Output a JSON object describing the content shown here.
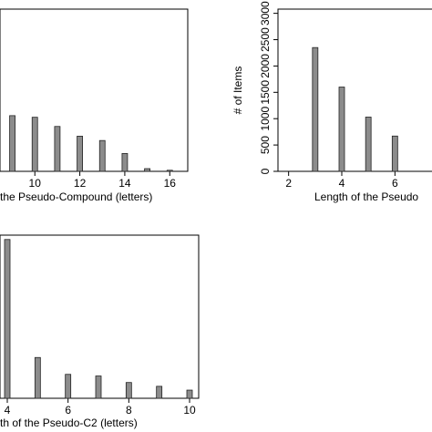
{
  "chart_data": [
    {
      "type": "bar",
      "x_label": "the Pseudo-Compound (letters)",
      "x": [
        9,
        10,
        11,
        12,
        13,
        14,
        15,
        16
      ],
      "values": [
        1030,
        1000,
        830,
        650,
        570,
        330,
        50,
        20
      ],
      "xlim": [
        8.45,
        16.8
      ],
      "xticks": [
        10,
        12,
        14,
        16
      ],
      "ylim": [
        0,
        3000
      ],
      "color": "#8c8c8c"
    },
    {
      "type": "bar",
      "x_label": "Length of the Pseudo",
      "y_label": "# of Items",
      "x": [
        3,
        4,
        5,
        6
      ],
      "values": [
        2350,
        1600,
        1030,
        670
      ],
      "xlim": [
        1.6,
        7.6
      ],
      "xticks": [
        2,
        4,
        6
      ],
      "ylim": [
        0,
        3080
      ],
      "yticks": [
        0,
        500,
        1000,
        1500,
        2000,
        2500,
        3000
      ],
      "color": "#8c8c8c"
    },
    {
      "type": "bar",
      "x_label": "th of the Pseudo-C2 (letters)",
      "x": [
        4,
        5,
        6,
        7,
        8,
        9,
        10
      ],
      "values": [
        2920,
        750,
        440,
        410,
        290,
        220,
        150
      ],
      "xlim": [
        3.76,
        10.3
      ],
      "xticks": [
        4,
        6,
        8,
        10
      ],
      "ylim": [
        0,
        3000
      ],
      "color": "#8c8c8c"
    }
  ]
}
